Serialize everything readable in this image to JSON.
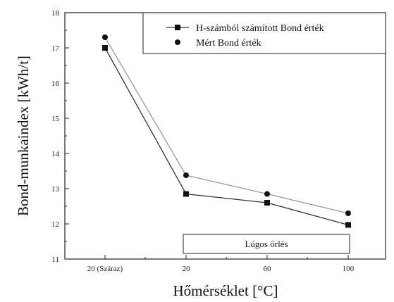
{
  "chart_data": {
    "type": "line",
    "categories": [
      "20 (Száraz)",
      "20",
      "60",
      "100"
    ],
    "series": [
      {
        "name": "H-számból számított Bond érték",
        "marker": "square",
        "values": [
          17.0,
          12.85,
          12.6,
          11.97
        ]
      },
      {
        "name": "Mért Bond érték",
        "marker": "circle",
        "values": [
          17.3,
          13.38,
          12.85,
          12.3
        ]
      }
    ],
    "xlabel": "Hőmérséklet [°C]",
    "ylabel": "Bond-munkaindex [kWh/t]",
    "ylim": [
      11,
      18
    ],
    "yticks": [
      11,
      12,
      13,
      14,
      15,
      16,
      17,
      18
    ],
    "grid": false,
    "legend": "top-right",
    "annotation": "Lúgos őrlés"
  }
}
